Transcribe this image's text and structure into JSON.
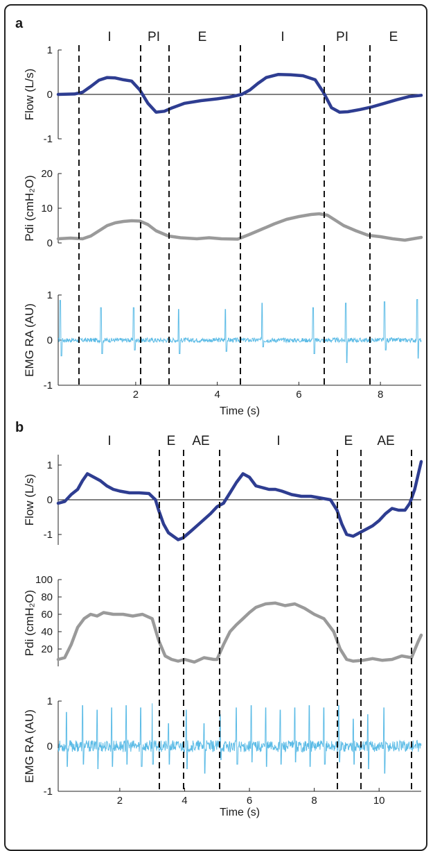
{
  "colors": {
    "flow": "#2e3d91",
    "pdi": "#9a9a9a",
    "emg": "#5bbbe6",
    "dashed": "#111111",
    "axis": "#222222"
  },
  "panels": [
    {
      "label": "a",
      "phases": [
        "I",
        "PI",
        "E",
        "I",
        "PI",
        "E"
      ],
      "xlabel": "Time (s)",
      "x_ticks": [
        "2",
        "4",
        "6",
        "8"
      ],
      "chart_data": [
        {
          "type": "line",
          "ylabel": "Flow (L/s)",
          "y_ticks": [
            "-1",
            "0",
            "1"
          ],
          "ylim": [
            -1,
            1
          ],
          "xlim": [
            0.1,
            9.0
          ],
          "zero_line": true,
          "series": [
            {
              "x": [
                0.1,
                0.5,
                0.7,
                0.9,
                1.1,
                1.3,
                1.5,
                1.7,
                1.9,
                2.1,
                2.3,
                2.5,
                2.7,
                2.9,
                3.2,
                3.6,
                4.0,
                4.3,
                4.6,
                4.8,
                5.0,
                5.2,
                5.5,
                5.8,
                6.1,
                6.4,
                6.6,
                6.8,
                7.0,
                7.2,
                7.5,
                7.8,
                8.1,
                8.4,
                8.7,
                9.0
              ],
              "y": [
                0.0,
                0.01,
                0.05,
                0.18,
                0.32,
                0.38,
                0.37,
                0.33,
                0.3,
                0.1,
                -0.2,
                -0.4,
                -0.38,
                -0.3,
                -0.2,
                -0.14,
                -0.1,
                -0.06,
                0.0,
                0.1,
                0.25,
                0.38,
                0.45,
                0.44,
                0.42,
                0.33,
                0.05,
                -0.3,
                -0.4,
                -0.39,
                -0.34,
                -0.28,
                -0.2,
                -0.12,
                -0.05,
                -0.02
              ]
            }
          ]
        },
        {
          "type": "line",
          "ylabel": "Pdi (cmH₂O)",
          "y_ticks": [
            "0",
            "10",
            "20"
          ],
          "ylim": [
            0,
            20
          ],
          "xlim": [
            0.1,
            9.0
          ],
          "series": [
            {
              "x": [
                0.1,
                0.4,
                0.7,
                0.9,
                1.1,
                1.3,
                1.5,
                1.7,
                1.9,
                2.1,
                2.3,
                2.5,
                2.8,
                3.1,
                3.5,
                3.8,
                4.1,
                4.5,
                4.8,
                5.1,
                5.4,
                5.7,
                6.0,
                6.3,
                6.5,
                6.7,
                6.9,
                7.1,
                7.4,
                7.7,
                8.0,
                8.3,
                8.6,
                9.0
              ],
              "y": [
                1.2,
                1.4,
                1.2,
                2.0,
                3.5,
                5.0,
                5.8,
                6.2,
                6.4,
                6.3,
                5.3,
                3.5,
                2.0,
                1.5,
                1.2,
                1.5,
                1.2,
                1.1,
                2.5,
                4.0,
                5.5,
                6.8,
                7.6,
                8.2,
                8.4,
                8.0,
                6.5,
                5.0,
                3.5,
                2.2,
                1.8,
                1.2,
                0.8,
                1.6
              ]
            }
          ]
        },
        {
          "type": "line",
          "ylabel": "EMG RA (AU)",
          "y_ticks": [
            "-1",
            "0",
            "1"
          ],
          "ylim": [
            -1,
            1
          ],
          "xlim": [
            0.1,
            9.0
          ],
          "series": [
            {
              "spike_x": [
                0.15,
                1.15,
                1.95,
                3.05,
                4.2,
                5.1,
                6.35,
                7.15,
                8.1,
                8.9
              ],
              "spike_up": [
                0.88,
                0.72,
                0.72,
                0.68,
                0.68,
                0.82,
                0.72,
                0.82,
                0.85,
                0.9
              ],
              "spike_down": [
                -0.35,
                -0.3,
                -0.22,
                -0.3,
                -0.25,
                -0.15,
                -0.3,
                -0.5,
                -0.22,
                -0.4
              ],
              "baseline_noise": 0.05
            }
          ]
        }
      ]
    },
    {
      "label": "b",
      "phases": [
        "I",
        "E",
        "AE",
        "I",
        "E",
        "AE"
      ],
      "xlabel": "Time (s)",
      "x_ticks": [
        "2",
        "4",
        "6",
        "8",
        "10"
      ],
      "chart_data": [
        {
          "type": "line",
          "ylabel": "Flow (L/s)",
          "y_ticks": [
            "-1",
            "0",
            "1"
          ],
          "ylim": [
            -1.3,
            1.3
          ],
          "xlim": [
            0.1,
            11.3
          ],
          "zero_line": true,
          "series": [
            {
              "x": [
                0.1,
                0.3,
                0.5,
                0.7,
                0.85,
                1.0,
                1.2,
                1.4,
                1.6,
                1.8,
                2.0,
                2.3,
                2.6,
                2.9,
                3.1,
                3.2,
                3.35,
                3.5,
                3.65,
                3.8,
                3.95,
                4.2,
                4.5,
                4.8,
                5.0,
                5.2,
                5.4,
                5.6,
                5.8,
                6.0,
                6.2,
                6.4,
                6.6,
                6.8,
                7.0,
                7.3,
                7.6,
                7.9,
                8.2,
                8.5,
                8.7,
                8.85,
                9.0,
                9.2,
                9.4,
                9.6,
                9.8,
                10.0,
                10.2,
                10.4,
                10.6,
                10.8,
                10.95,
                11.1,
                11.3
              ],
              "y": [
                -0.1,
                -0.05,
                0.15,
                0.3,
                0.55,
                0.75,
                0.65,
                0.55,
                0.4,
                0.3,
                0.25,
                0.2,
                0.2,
                0.18,
                0.0,
                -0.3,
                -0.7,
                -0.95,
                -1.05,
                -1.15,
                -1.1,
                -0.9,
                -0.65,
                -0.4,
                -0.2,
                -0.1,
                0.2,
                0.5,
                0.75,
                0.65,
                0.4,
                0.35,
                0.3,
                0.3,
                0.25,
                0.15,
                0.1,
                0.1,
                0.05,
                0.0,
                -0.3,
                -0.7,
                -1.0,
                -1.05,
                -0.95,
                -0.85,
                -0.75,
                -0.6,
                -0.4,
                -0.25,
                -0.3,
                -0.3,
                -0.1,
                0.3,
                1.1
              ]
            }
          ]
        },
        {
          "type": "line",
          "ylabel": "Pdi (cmH₂O)",
          "y_ticks": [
            "20",
            "40",
            "60",
            "80",
            "100"
          ],
          "ylim": [
            0,
            100
          ],
          "xlim": [
            0.1,
            11.3
          ],
          "series": [
            {
              "x": [
                0.1,
                0.3,
                0.5,
                0.7,
                0.9,
                1.1,
                1.3,
                1.5,
                1.8,
                2.1,
                2.4,
                2.7,
                3.0,
                3.2,
                3.4,
                3.6,
                3.8,
                4.0,
                4.3,
                4.6,
                4.9,
                5.0,
                5.2,
                5.4,
                5.6,
                5.8,
                6.0,
                6.2,
                6.5,
                6.8,
                7.1,
                7.4,
                7.7,
                8.0,
                8.3,
                8.6,
                8.8,
                9.0,
                9.2,
                9.5,
                9.8,
                10.1,
                10.4,
                10.7,
                11.0,
                11.2,
                11.3
              ],
              "y": [
                8,
                10,
                25,
                45,
                55,
                60,
                58,
                62,
                60,
                60,
                58,
                60,
                55,
                30,
                12,
                8,
                6,
                8,
                5,
                10,
                8,
                8,
                25,
                40,
                48,
                55,
                62,
                68,
                72,
                73,
                70,
                72,
                67,
                60,
                55,
                40,
                20,
                8,
                6,
                7,
                9,
                7,
                8,
                12,
                10,
                28,
                36
              ]
            }
          ]
        },
        {
          "type": "line",
          "ylabel": "EMG RA (AU)",
          "y_ticks": [
            "-1",
            "0",
            "1"
          ],
          "ylim": [
            -1,
            1
          ],
          "xlim": [
            0.1,
            11.3
          ],
          "series": [
            {
              "spike_x": [
                0.35,
                0.85,
                1.3,
                1.75,
                2.2,
                2.65,
                3.0,
                3.5,
                4.05,
                4.6,
                5.1,
                5.6,
                6.05,
                6.5,
                6.95,
                7.4,
                7.85,
                8.3,
                8.75,
                9.2,
                9.65,
                10.15
              ],
              "spike_up": [
                0.75,
                0.9,
                0.8,
                0.85,
                0.9,
                0.85,
                0.95,
                0.5,
                0.8,
                0.5,
                0.7,
                0.85,
                0.9,
                0.85,
                0.8,
                0.85,
                0.9,
                0.85,
                0.9,
                0.6,
                0.7,
                0.85
              ],
              "spike_down": [
                -0.45,
                -0.4,
                -0.5,
                -0.45,
                -0.4,
                -0.45,
                -0.4,
                -0.4,
                -0.5,
                -0.6,
                -0.3,
                -0.4,
                -0.35,
                -0.45,
                -0.4,
                -0.35,
                -0.45,
                -0.4,
                -0.35,
                -0.4,
                -0.5,
                -0.6
              ],
              "baseline_noise": 0.13
            }
          ]
        }
      ]
    }
  ]
}
